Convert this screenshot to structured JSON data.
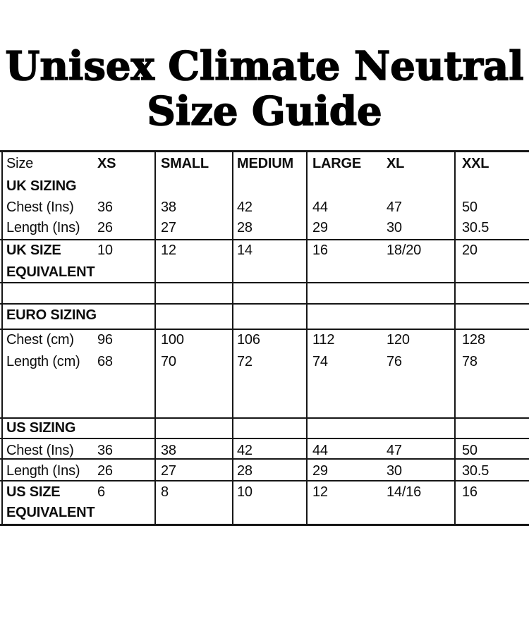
{
  "title": {
    "line1": "Unisex Climate Neutral",
    "line2": "Size Guide"
  },
  "colors": {
    "text": "#000000",
    "grid": "#161616",
    "background": "#ffffff"
  },
  "table": {
    "header": {
      "label": "Size",
      "sizes": [
        "XS",
        "SMALL",
        "MEDIUM",
        "LARGE",
        "XL",
        "XXL"
      ]
    },
    "uk": {
      "section_label": "UK SIZING",
      "chest": {
        "label": "Chest (Ins)",
        "values": [
          "36",
          "38",
          "42",
          "44",
          "47",
          "50"
        ]
      },
      "length": {
        "label": "Length (Ins)",
        "values": [
          "26",
          "27",
          "28",
          "29",
          "30",
          "30.5"
        ]
      },
      "equivalent": {
        "label_line1": "UK SIZE",
        "label_line2": "EQUIVALENT",
        "values": [
          "10",
          "12",
          "14",
          "16",
          "18/20",
          "20"
        ]
      }
    },
    "euro": {
      "section_label": "EURO SIZING",
      "chest": {
        "label": "Chest (cm)",
        "values": [
          "96",
          "100",
          "106",
          "112",
          "120",
          "128"
        ]
      },
      "length": {
        "label": "Length (cm)",
        "values": [
          "68",
          "70",
          "72",
          "74",
          "76",
          "78"
        ]
      }
    },
    "us": {
      "section_label": "US SIZING",
      "chest": {
        "label": "Chest (Ins)",
        "values": [
          "36",
          "38",
          "42",
          "44",
          "47",
          "50"
        ]
      },
      "length": {
        "label": "Length (Ins)",
        "values": [
          "26",
          "27",
          "28",
          "29",
          "30",
          "30.5"
        ]
      },
      "equivalent": {
        "label_line1": "US SIZE",
        "label_line2": "EQUIVALENT",
        "values": [
          "6",
          "8",
          "10",
          "12",
          "14/16",
          "16"
        ]
      }
    }
  }
}
